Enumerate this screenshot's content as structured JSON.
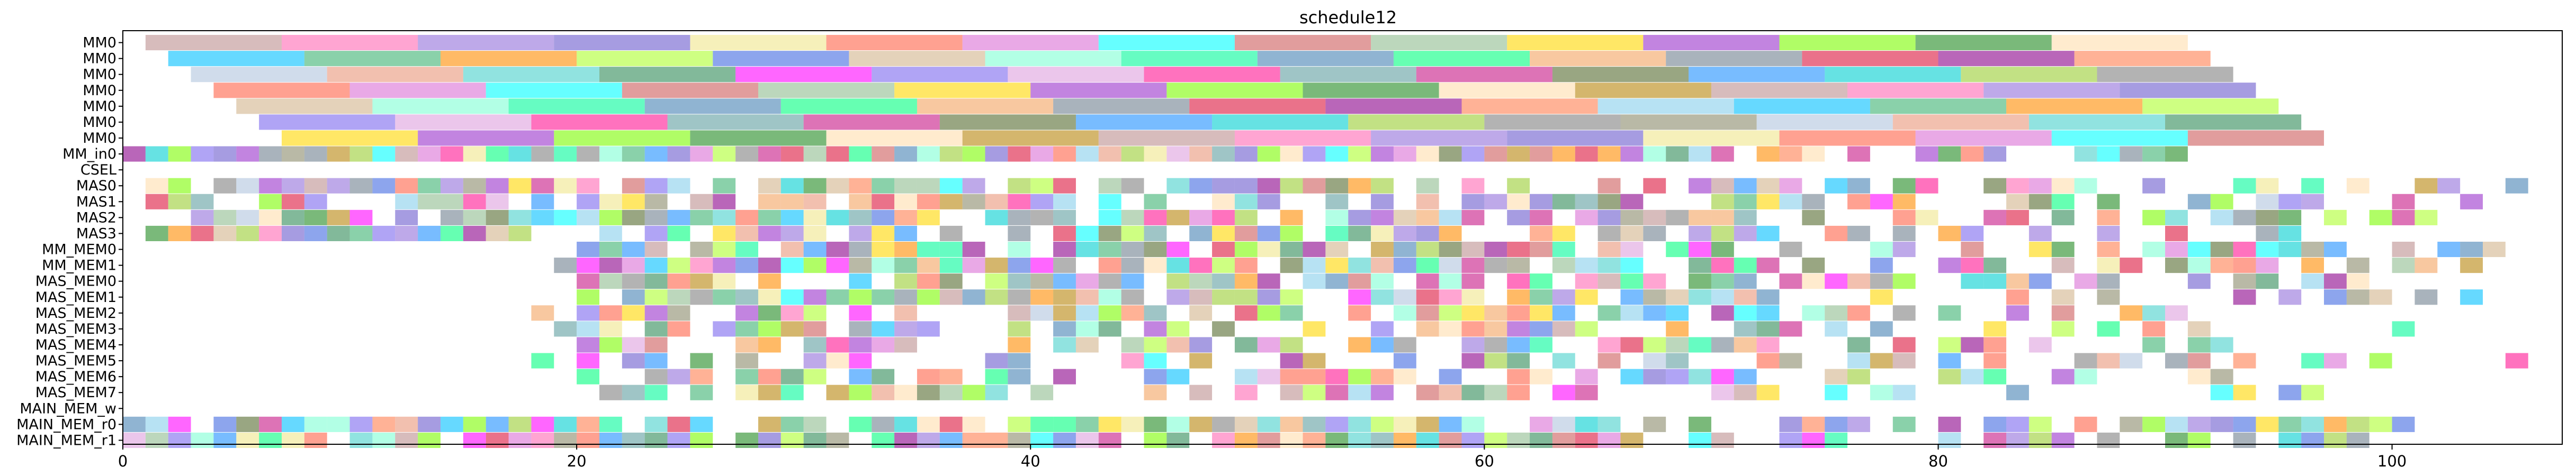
{
  "chart_data": {
    "type": "gantt",
    "title": "schedule12",
    "xlim": [
      0,
      107.5
    ],
    "x_ticks": [
      "0",
      "20",
      "40",
      "60",
      "80",
      "100"
    ],
    "x_tick_values": [
      0,
      20,
      40,
      60,
      80,
      100
    ],
    "grid": false,
    "rows": [
      "MM0",
      "MM0",
      "MM0",
      "MM0",
      "MM0",
      "MM0",
      "MM0",
      "MM_in0",
      "CSEL",
      "MAS0",
      "MAS1",
      "MAS2",
      "MAS3",
      "MM_MEM0",
      "MM_MEM1",
      "MAS_MEM0",
      "MAS_MEM1",
      "MAS_MEM2",
      "MAS_MEM3",
      "MAS_MEM4",
      "MAS_MEM5",
      "MAS_MEM6",
      "MAS_MEM7",
      "MAIN_MEM_w",
      "MAIN_MEM_r0",
      "MAIN_MEM_r1"
    ],
    "palette": [
      "#bc8f8f",
      "#9acd32",
      "#87ceeb",
      "#ff69b4",
      "#808080",
      "#00bfff",
      "#9370db",
      "#8b8b6b",
      "#3cb371",
      "#6a5acd",
      "#b0c4de",
      "#ff8c00",
      "#f0e68c",
      "#e9967a",
      "#adff2f",
      "#ff6347",
      "#48d1cc",
      "#4169e1",
      "#da70d6",
      "#2e8b57",
      "#d2b48c",
      "#00ffff",
      "#ff00ff",
      "#7fffd4",
      "#cd5c5c",
      "#7b68ee",
      "#00fa9a",
      "#8fbc8f",
      "#dda0dd",
      "#4682b4",
      "#ffd700",
      "#ff1493",
      "#00ff7f",
      "#9932cc",
      "#5f9ea0",
      "#f4a460",
      "#7cfc00",
      "#c71585",
      "#708090",
      "#228b22",
      "#556b2f",
      "#dc143c",
      "#ffdead",
      "#1e90ff",
      "#8b008b",
      "#b8860b",
      "#00ced1",
      "#ff7f50"
    ],
    "bar_opacity": 0.6,
    "mm_bars": [
      {
        "row": 0,
        "segments": [
          [
            1,
            7
          ],
          [
            7,
            13
          ],
          [
            13,
            19
          ],
          [
            19,
            25
          ],
          [
            25,
            31
          ],
          [
            31,
            37
          ],
          [
            37,
            43
          ],
          [
            43,
            49
          ],
          [
            49,
            55
          ],
          [
            55,
            61
          ],
          [
            61,
            67
          ],
          [
            67,
            73
          ],
          [
            73,
            79
          ],
          [
            79,
            85
          ],
          [
            85,
            91
          ]
        ]
      },
      {
        "row": 1,
        "segments": [
          [
            2,
            8
          ],
          [
            8,
            14
          ],
          [
            14,
            20
          ],
          [
            20,
            26
          ],
          [
            26,
            32
          ],
          [
            32,
            38
          ],
          [
            38,
            44
          ],
          [
            44,
            50
          ],
          [
            50,
            56
          ],
          [
            56,
            62
          ],
          [
            62,
            68
          ],
          [
            68,
            74
          ],
          [
            74,
            80
          ],
          [
            80,
            86
          ],
          [
            86,
            92
          ]
        ]
      },
      {
        "row": 2,
        "segments": [
          [
            3,
            9
          ],
          [
            9,
            15
          ],
          [
            15,
            21
          ],
          [
            21,
            27
          ],
          [
            27,
            33
          ],
          [
            33,
            39
          ],
          [
            39,
            45
          ],
          [
            45,
            51
          ],
          [
            51,
            57
          ],
          [
            57,
            63
          ],
          [
            63,
            69
          ],
          [
            69,
            75
          ],
          [
            75,
            81
          ],
          [
            81,
            87
          ],
          [
            87,
            93
          ]
        ]
      },
      {
        "row": 3,
        "segments": [
          [
            4,
            10
          ],
          [
            10,
            16
          ],
          [
            16,
            22
          ],
          [
            22,
            28
          ],
          [
            28,
            34
          ],
          [
            34,
            40
          ],
          [
            40,
            46
          ],
          [
            46,
            52
          ],
          [
            52,
            58
          ],
          [
            58,
            64
          ],
          [
            64,
            70
          ],
          [
            70,
            76
          ],
          [
            76,
            82
          ],
          [
            82,
            88
          ],
          [
            88,
            94
          ]
        ]
      },
      {
        "row": 4,
        "segments": [
          [
            5,
            11
          ],
          [
            11,
            17
          ],
          [
            17,
            23
          ],
          [
            23,
            29
          ],
          [
            29,
            35
          ],
          [
            35,
            41
          ],
          [
            41,
            47
          ],
          [
            47,
            53
          ],
          [
            53,
            59
          ],
          [
            59,
            65
          ],
          [
            65,
            71
          ],
          [
            71,
            77
          ],
          [
            77,
            83
          ],
          [
            83,
            89
          ],
          [
            89,
            95
          ]
        ]
      },
      {
        "row": 5,
        "segments": [
          [
            6,
            12
          ],
          [
            12,
            18
          ],
          [
            18,
            24
          ],
          [
            24,
            30
          ],
          [
            30,
            36
          ],
          [
            36,
            42
          ],
          [
            42,
            48
          ],
          [
            48,
            54
          ],
          [
            54,
            60
          ],
          [
            60,
            66
          ],
          [
            66,
            72
          ],
          [
            72,
            78
          ],
          [
            78,
            84
          ],
          [
            84,
            90
          ],
          [
            90,
            96
          ]
        ]
      },
      {
        "row": 6,
        "segments": [
          [
            7,
            13
          ],
          [
            13,
            19
          ],
          [
            19,
            25
          ],
          [
            25,
            31
          ],
          [
            31,
            37
          ],
          [
            37,
            43
          ],
          [
            43,
            49
          ],
          [
            49,
            55
          ],
          [
            55,
            61
          ],
          [
            61,
            67
          ],
          [
            67,
            73
          ],
          [
            73,
            79
          ],
          [
            79,
            85
          ],
          [
            85,
            91
          ],
          [
            91,
            97
          ]
        ]
      }
    ],
    "unit_rows": [
      {
        "row": 7,
        "start": 0,
        "end": 91,
        "density": 1.0,
        "seed": 7
      },
      {
        "row": 9,
        "start": 1,
        "end": 107,
        "density": 0.82,
        "seed": 9
      },
      {
        "row": 10,
        "start": 1,
        "end": 104,
        "density": 0.78,
        "seed": 10
      },
      {
        "row": 11,
        "start": 1,
        "end": 102,
        "density": 0.76,
        "seed": 11
      },
      {
        "row": 12,
        "start": 1,
        "end": 98,
        "density": 0.74,
        "seed": 12
      },
      {
        "row": 13,
        "start": 18,
        "end": 105,
        "density": 0.8,
        "seed": 13
      },
      {
        "row": 14,
        "start": 19,
        "end": 104,
        "density": 0.78,
        "seed": 14
      },
      {
        "row": 15,
        "start": 20,
        "end": 100,
        "density": 0.78,
        "seed": 15
      },
      {
        "row": 16,
        "start": 20,
        "end": 104,
        "density": 0.74,
        "seed": 16
      },
      {
        "row": 17,
        "start": 18,
        "end": 95,
        "density": 0.7,
        "seed": 17
      },
      {
        "row": 18,
        "start": 19,
        "end": 101,
        "density": 0.66,
        "seed": 18
      },
      {
        "row": 19,
        "start": 20,
        "end": 94,
        "density": 0.64,
        "seed": 19
      },
      {
        "row": 20,
        "start": 18,
        "end": 107,
        "density": 0.6,
        "seed": 20
      },
      {
        "row": 21,
        "start": 20,
        "end": 94,
        "density": 0.6,
        "seed": 21
      },
      {
        "row": 22,
        "start": 19,
        "end": 98,
        "density": 0.58,
        "seed": 22
      },
      {
        "row": 24,
        "start": 0,
        "end": 102,
        "density": 0.9,
        "seed": 24
      },
      {
        "row": 25,
        "start": 0,
        "end": 101,
        "density": 0.9,
        "seed": 25
      }
    ]
  }
}
